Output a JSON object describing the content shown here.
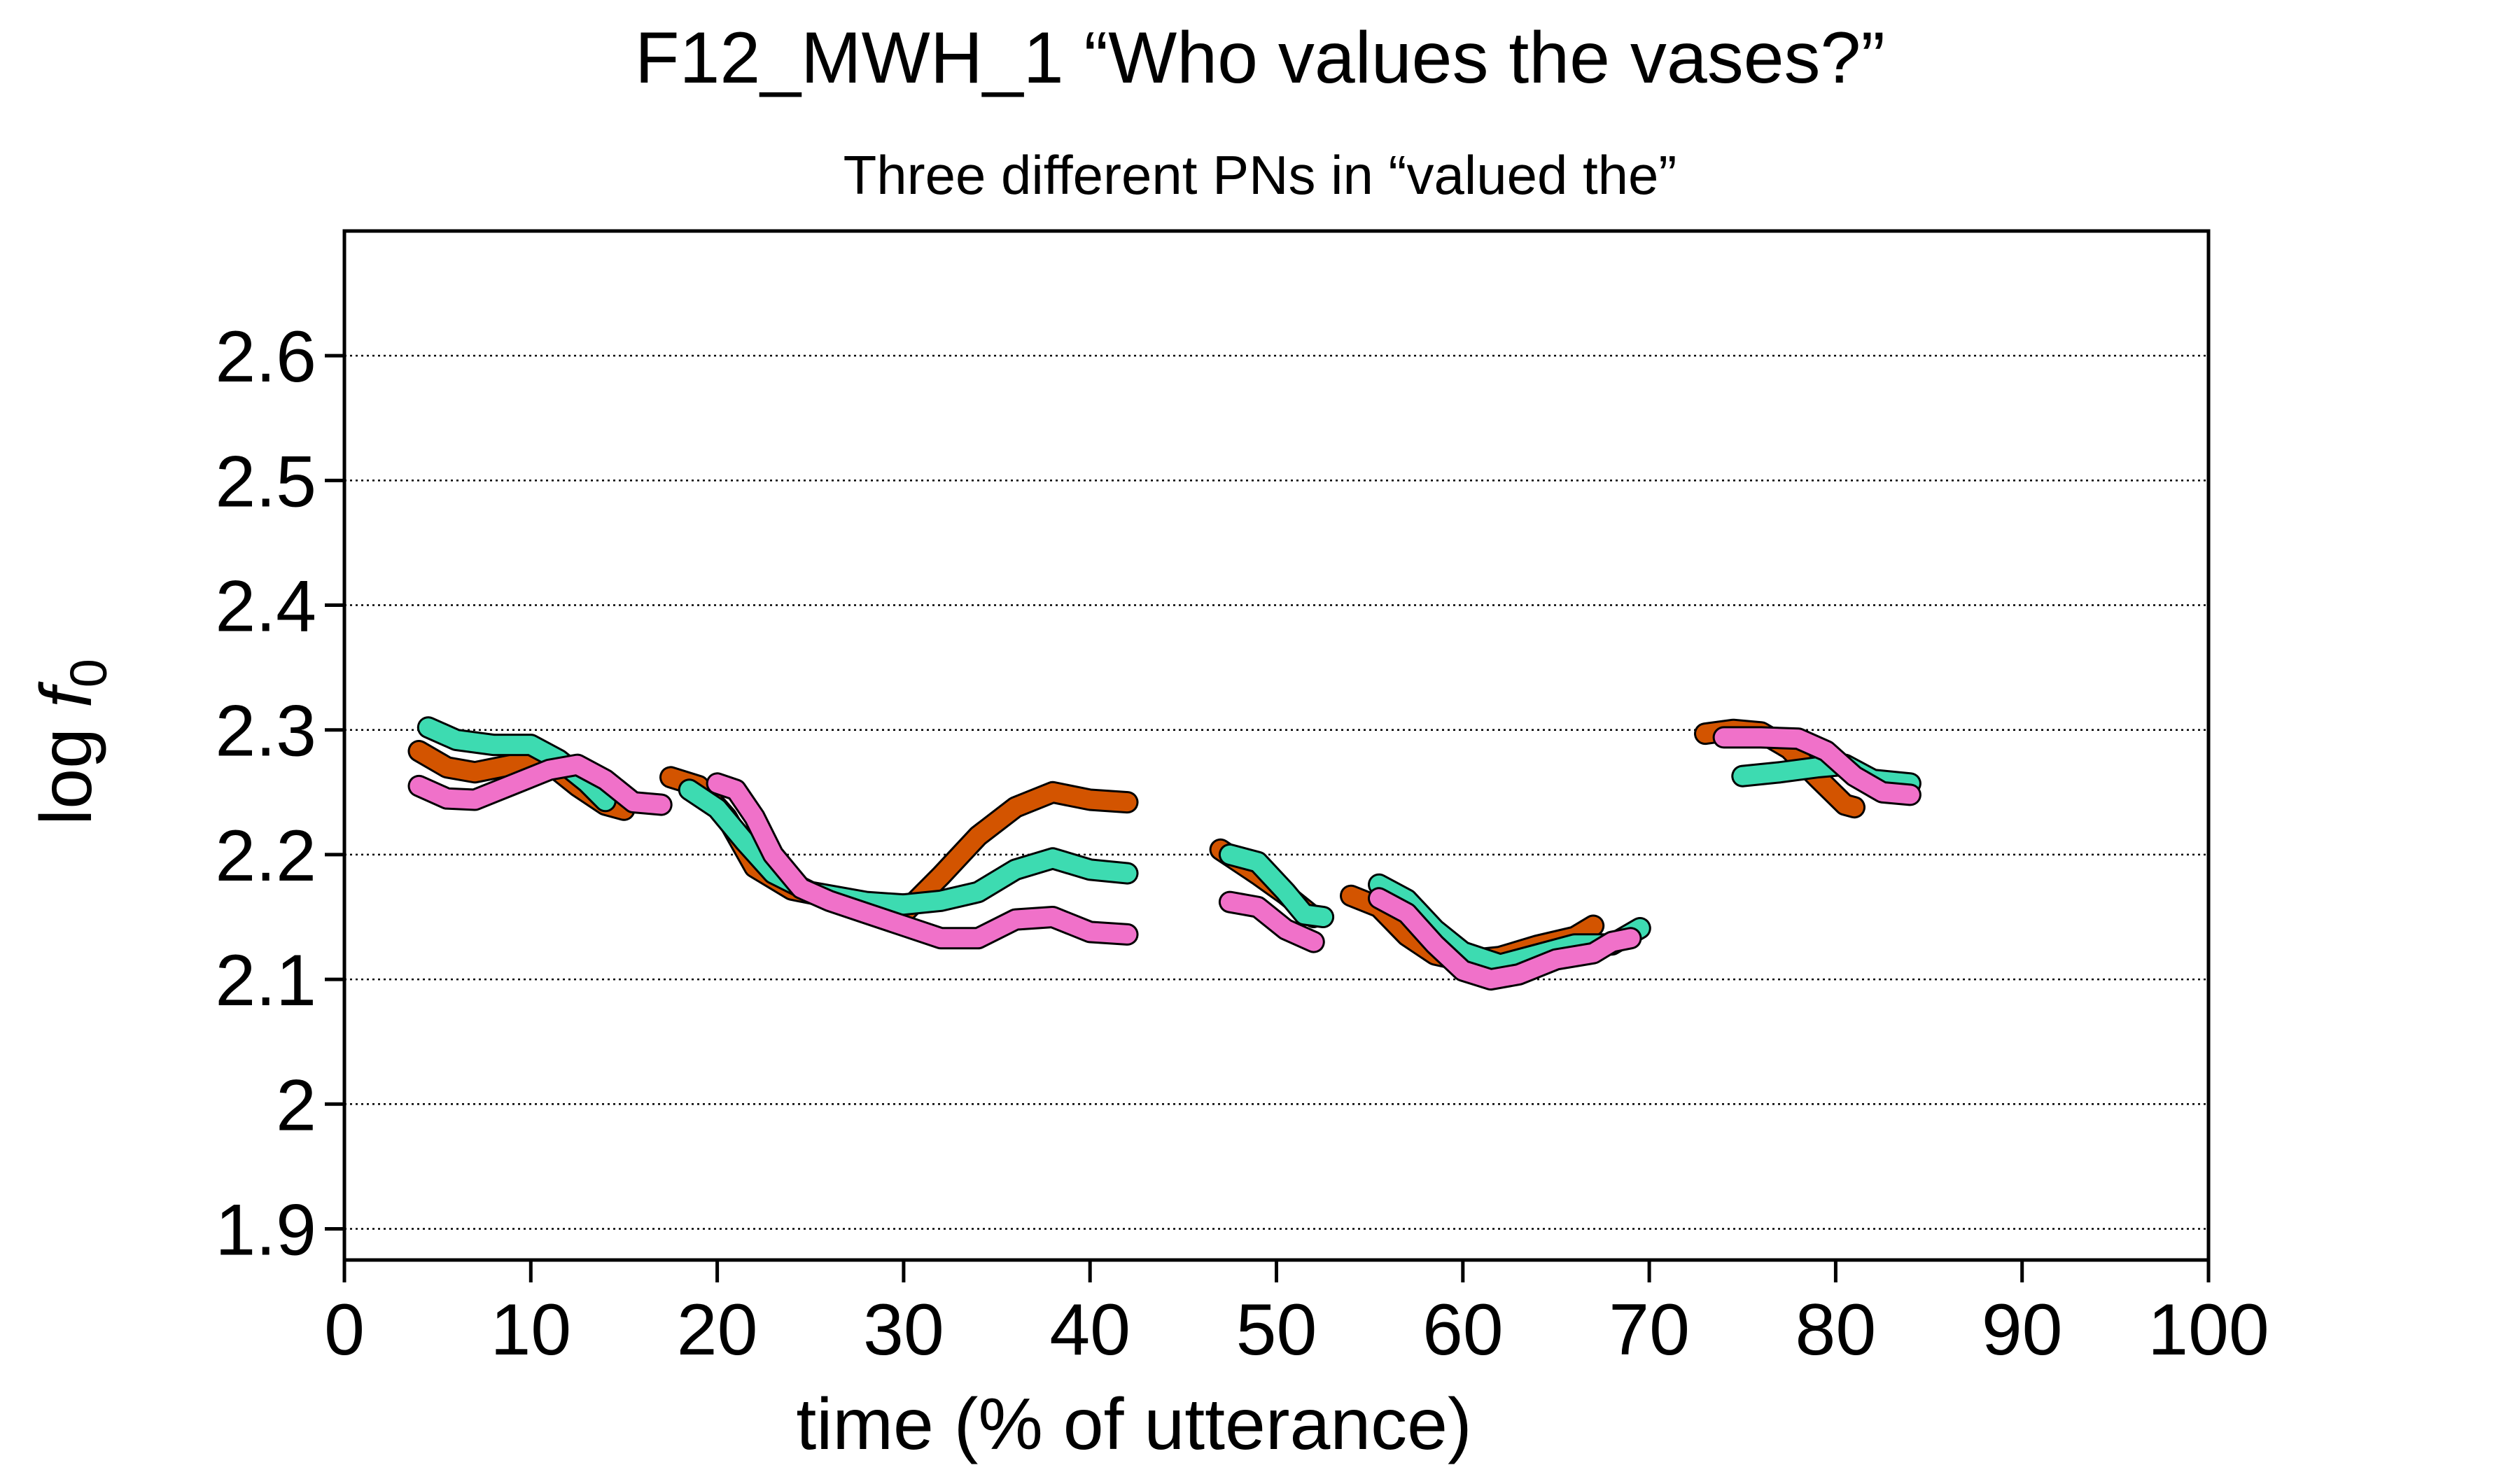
{
  "title": "F12_MWH_1 “Who values the vases?”",
  "subtitle": "Three different PNs in “valued the”",
  "chart_data": {
    "type": "line",
    "xlabel": "time (% of utterance)",
    "ylabel_main": "log ",
    "ylabel_f": "f",
    "ylabel_sub": "0",
    "xlim": [
      0,
      100
    ],
    "ylim": [
      1.875,
      2.7
    ],
    "xticks": [
      0,
      10,
      20,
      30,
      40,
      50,
      60,
      70,
      80,
      90,
      100
    ],
    "yticks": [
      1.9,
      2,
      2.1,
      2.2,
      2.3,
      2.4,
      2.5,
      2.6
    ],
    "ytick_labels": [
      "1.9",
      "2",
      "2.1",
      "2.2",
      "2.3",
      "2.4",
      "2.5",
      "2.6"
    ],
    "grid": "horizontal dotted",
    "legend": "none",
    "series": [
      {
        "color": "#d35400",
        "segments": [
          [
            [
              4.0,
              2.283
            ],
            [
              5.5,
              2.27
            ],
            [
              7.0,
              2.266
            ],
            [
              9.0,
              2.272
            ],
            [
              11.0,
              2.273
            ],
            [
              12.5,
              2.255
            ],
            [
              14.0,
              2.24
            ],
            [
              15.0,
              2.236
            ]
          ],
          [
            [
              17.5,
              2.262
            ],
            [
              19.0,
              2.255
            ],
            [
              20.5,
              2.23
            ],
            [
              22.0,
              2.19
            ],
            [
              24.0,
              2.172
            ],
            [
              26.0,
              2.166
            ],
            [
              28.0,
              2.159
            ],
            [
              30.0,
              2.153
            ],
            [
              32.0,
              2.183
            ],
            [
              34.0,
              2.215
            ],
            [
              36.0,
              2.238
            ],
            [
              38.0,
              2.25
            ],
            [
              40.0,
              2.244
            ],
            [
              42.0,
              2.242
            ]
          ],
          [
            [
              47.0,
              2.204
            ],
            [
              49.0,
              2.184
            ],
            [
              50.5,
              2.168
            ],
            [
              52.0,
              2.15
            ]
          ],
          [
            [
              54.0,
              2.167
            ],
            [
              55.5,
              2.158
            ],
            [
              57.0,
              2.135
            ],
            [
              58.5,
              2.12
            ],
            [
              60.0,
              2.115
            ],
            [
              62.0,
              2.118
            ],
            [
              64.0,
              2.127
            ],
            [
              66.0,
              2.134
            ],
            [
              67.0,
              2.143
            ]
          ],
          [
            [
              73.0,
              2.297
            ],
            [
              74.5,
              2.3
            ],
            [
              76.0,
              2.298
            ],
            [
              77.5,
              2.285
            ],
            [
              79.0,
              2.262
            ],
            [
              80.5,
              2.24
            ],
            [
              81.0,
              2.238
            ]
          ]
        ]
      },
      {
        "color": "#3ddbb1",
        "segments": [
          [
            [
              4.5,
              2.302
            ],
            [
              6.0,
              2.292
            ],
            [
              8.0,
              2.288
            ],
            [
              10.0,
              2.288
            ],
            [
              11.5,
              2.276
            ],
            [
              13.0,
              2.258
            ],
            [
              14.0,
              2.243
            ]
          ],
          [
            [
              18.5,
              2.252
            ],
            [
              20.0,
              2.237
            ],
            [
              21.5,
              2.21
            ],
            [
              23.0,
              2.185
            ],
            [
              25.0,
              2.17
            ],
            [
              28.0,
              2.162
            ],
            [
              30.0,
              2.16
            ],
            [
              32.0,
              2.163
            ],
            [
              34.0,
              2.17
            ],
            [
              36.0,
              2.188
            ],
            [
              38.0,
              2.197
            ],
            [
              40.0,
              2.188
            ],
            [
              42.0,
              2.185
            ]
          ],
          [
            [
              47.5,
              2.2
            ],
            [
              49.0,
              2.194
            ],
            [
              50.5,
              2.17
            ],
            [
              51.5,
              2.152
            ],
            [
              52.5,
              2.15
            ]
          ],
          [
            [
              55.5,
              2.176
            ],
            [
              57.0,
              2.164
            ],
            [
              58.5,
              2.14
            ],
            [
              60.0,
              2.122
            ],
            [
              62.0,
              2.112
            ],
            [
              64.0,
              2.12
            ],
            [
              66.0,
              2.128
            ],
            [
              68.0,
              2.128
            ],
            [
              69.5,
              2.141
            ]
          ],
          [
            [
              75.0,
              2.263
            ],
            [
              77.0,
              2.266
            ],
            [
              79.0,
              2.27
            ],
            [
              80.5,
              2.272
            ],
            [
              82.0,
              2.26
            ],
            [
              84.0,
              2.257
            ]
          ]
        ]
      },
      {
        "color": "#f071c9",
        "segments": [
          [
            [
              4.0,
              2.255
            ],
            [
              5.5,
              2.245
            ],
            [
              7.0,
              2.244
            ],
            [
              9.0,
              2.256
            ],
            [
              11.0,
              2.268
            ],
            [
              12.5,
              2.272
            ],
            [
              14.0,
              2.26
            ],
            [
              15.5,
              2.242
            ],
            [
              17.0,
              2.24
            ]
          ],
          [
            [
              20.0,
              2.257
            ],
            [
              21.0,
              2.252
            ],
            [
              22.0,
              2.23
            ],
            [
              23.0,
              2.2
            ],
            [
              24.5,
              2.173
            ],
            [
              26.0,
              2.163
            ],
            [
              28.0,
              2.153
            ],
            [
              30.0,
              2.143
            ],
            [
              32.0,
              2.133
            ],
            [
              34.0,
              2.133
            ],
            [
              36.0,
              2.148
            ],
            [
              38.0,
              2.15
            ],
            [
              40.0,
              2.138
            ],
            [
              42.0,
              2.136
            ]
          ],
          [
            [
              47.5,
              2.162
            ],
            [
              49.0,
              2.158
            ],
            [
              50.5,
              2.14
            ],
            [
              52.0,
              2.13
            ]
          ],
          [
            [
              55.5,
              2.165
            ],
            [
              57.0,
              2.153
            ],
            [
              58.5,
              2.128
            ],
            [
              60.0,
              2.107
            ],
            [
              61.5,
              2.1
            ],
            [
              63.0,
              2.104
            ],
            [
              65.0,
              2.116
            ],
            [
              67.0,
              2.121
            ],
            [
              68.0,
              2.13
            ],
            [
              69.0,
              2.133
            ]
          ],
          [
            [
              74.0,
              2.294
            ],
            [
              76.0,
              2.294
            ],
            [
              78.0,
              2.293
            ],
            [
              79.5,
              2.283
            ],
            [
              81.0,
              2.263
            ],
            [
              82.5,
              2.25
            ],
            [
              84.0,
              2.248
            ]
          ]
        ]
      }
    ]
  }
}
